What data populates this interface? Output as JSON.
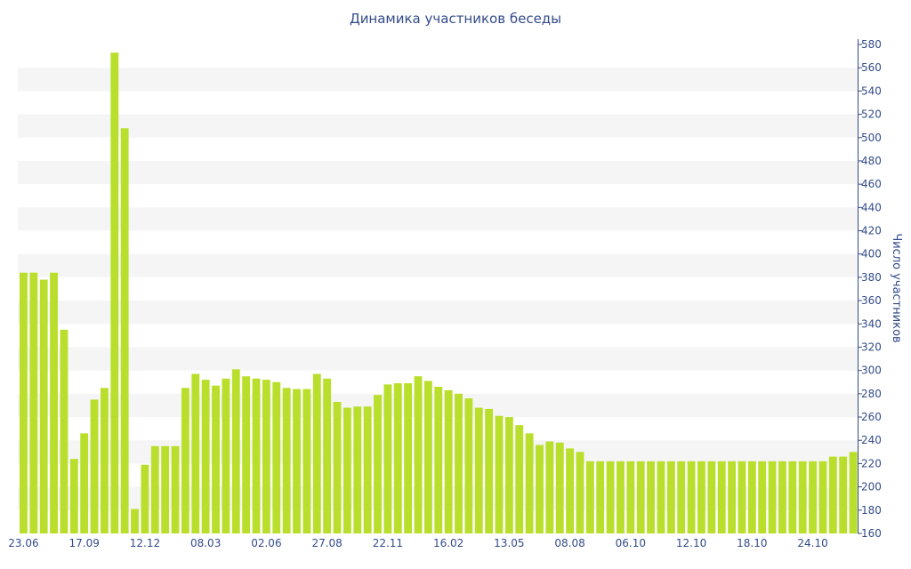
{
  "chart_data": {
    "type": "bar",
    "title": "Динамика участников беседы",
    "ylabel": "Число участников",
    "xlabel": "",
    "ylim": [
      160,
      580
    ],
    "ytick_step": 20,
    "grid": "alternating horizontal bands",
    "y_axis_side": "right",
    "bar_color": "#b9df2c",
    "band_color": "#f5f5f5",
    "text_color": "#334b8a",
    "x_tick_labels": [
      "23.06",
      "17.09",
      "12.12",
      "08.03",
      "02.06",
      "27.08",
      "22.11",
      "16.02",
      "13.05",
      "08.08",
      "06.10",
      "12.10",
      "18.10",
      "24.10"
    ],
    "x_tick_bar_index": [
      0,
      6,
      12,
      18,
      24,
      30,
      36,
      42,
      48,
      54,
      60,
      66,
      72,
      78
    ],
    "values": [
      384,
      384,
      378,
      384,
      335,
      224,
      246,
      275,
      285,
      573,
      508,
      181,
      219,
      235,
      235,
      235,
      285,
      297,
      292,
      287,
      293,
      301,
      295,
      293,
      292,
      290,
      285,
      284,
      284,
      297,
      293,
      273,
      268,
      269,
      269,
      279,
      288,
      289,
      289,
      295,
      291,
      286,
      283,
      280,
      276,
      268,
      267,
      261,
      260,
      253,
      246,
      236,
      239,
      238,
      233,
      230,
      222,
      222,
      222,
      222,
      222,
      222,
      222,
      222,
      222,
      222,
      222,
      222,
      222,
      222,
      222,
      222,
      222,
      222,
      222,
      222,
      222,
      222,
      222,
      222,
      226,
      226,
      230
    ]
  }
}
